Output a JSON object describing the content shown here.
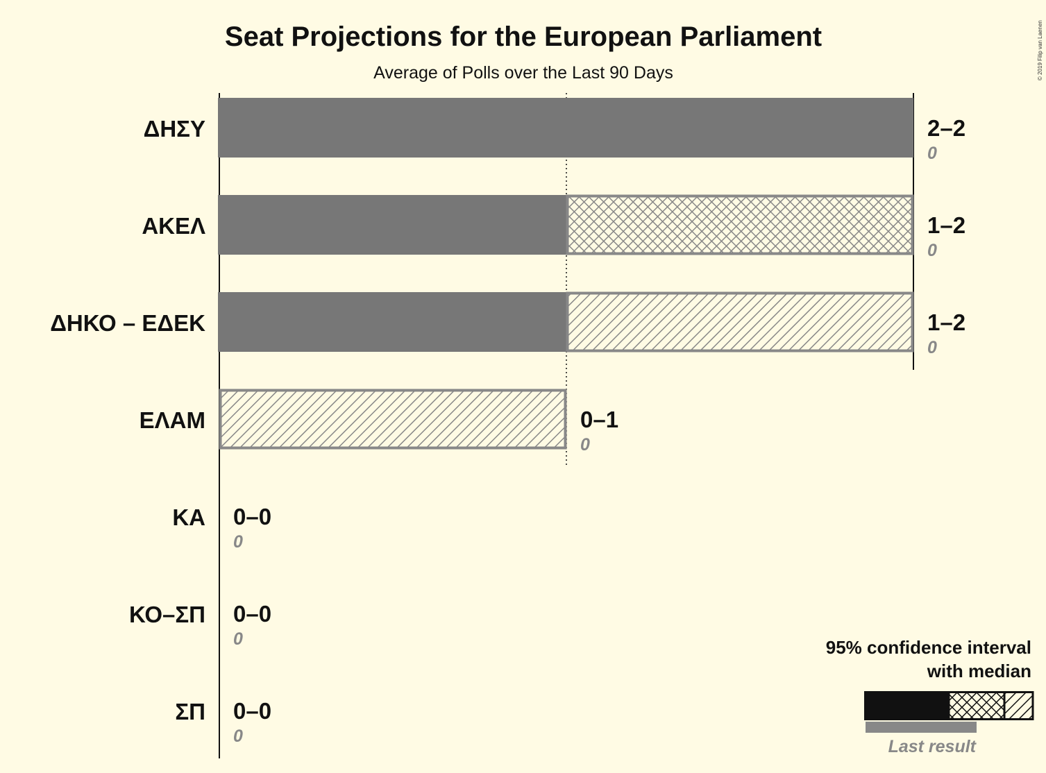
{
  "title": "Seat Projections for the European Parliament",
  "subtitle": "Average of Polls over the Last 90 Days",
  "copyright": "© 2019 Filip van Laenen",
  "colors": {
    "background": "#fffbe4",
    "bar": "#777777",
    "hatch": "#888888",
    "legend_dark": "#111111",
    "legend_last": "#888888",
    "text": "#111111",
    "last_result_text": "#888888"
  },
  "chart_data": {
    "type": "bar",
    "orientation": "horizontal",
    "title": "Seat Projections for the European Parliament",
    "subtitle": "Average of Polls over the Last 90 Days",
    "xlim": [
      0,
      2
    ],
    "gridlines": [
      1
    ],
    "categories": [
      "ΔΗΣΥ",
      "ΑΚΕΛ",
      "ΔΗΚΟ – ΕΔΕΚ",
      "ΕΛΑΜ",
      "ΚΑ",
      "ΚΟ–ΣΠ",
      "ΣΠ"
    ],
    "series": [
      {
        "name": "95% interval low",
        "values": [
          2,
          1,
          1,
          0,
          0,
          0,
          0
        ]
      },
      {
        "name": "median",
        "values": [
          2,
          2,
          1,
          0,
          0,
          0,
          0
        ]
      },
      {
        "name": "95% interval high",
        "values": [
          2,
          2,
          2,
          1,
          0,
          0,
          0
        ]
      },
      {
        "name": "Last result",
        "values": [
          0,
          0,
          0,
          0,
          0,
          0,
          0
        ]
      }
    ],
    "range_labels": [
      "2–2",
      "1–2",
      "1–2",
      "0–1",
      "0–0",
      "0–0",
      "0–0"
    ],
    "last_result_labels": [
      "0",
      "0",
      "0",
      "0",
      "0",
      "0",
      "0"
    ]
  },
  "legend": {
    "line1": "95% confidence interval",
    "line2": "with median",
    "last_result": "Last result"
  }
}
